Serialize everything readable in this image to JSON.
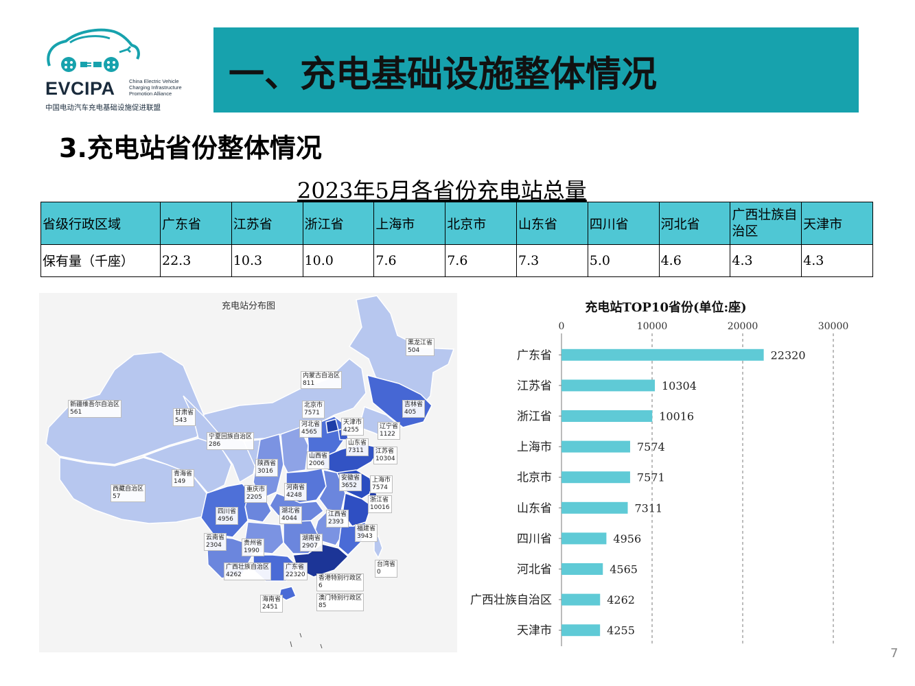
{
  "logo": {
    "name": "EVCIPA",
    "english_lines": [
      "China Electric Vehicle",
      "Charging Infrastructure",
      "Promotion Alliance"
    ],
    "chinese": "中国电动汽车充电基础设施促进联盟"
  },
  "header": {
    "title": "一、充电基础设施整体情况"
  },
  "section": {
    "title": "3.充电站省份整体情况"
  },
  "table": {
    "title": "2023年5月各省份充电站总量",
    "row_headers": [
      "省级行政区域",
      "保有量（千座）"
    ],
    "columns": [
      {
        "province": "广东省",
        "value": "22.3"
      },
      {
        "province": "江苏省",
        "value": "10.3"
      },
      {
        "province": "浙江省",
        "value": "10.0"
      },
      {
        "province": "上海市",
        "value": "7.6"
      },
      {
        "province": "北京市",
        "value": "7.6"
      },
      {
        "province": "山东省",
        "value": "7.3"
      },
      {
        "province": "四川省",
        "value": "5.0"
      },
      {
        "province": "河北省",
        "value": "4.6"
      },
      {
        "province": "广西壮族自治区",
        "value": "4.3"
      },
      {
        "province": "天津市",
        "value": "4.3"
      }
    ]
  },
  "map": {
    "title": "充电站分布图",
    "provinces": [
      {
        "name": "黑龙江省",
        "value": "504"
      },
      {
        "name": "内蒙古自治区",
        "value": "811"
      },
      {
        "name": "新疆维吾尔自治区",
        "value": "561"
      },
      {
        "name": "甘肃省",
        "value": "543"
      },
      {
        "name": "北京市",
        "value": "7571"
      },
      {
        "name": "吉林省",
        "value": "405"
      },
      {
        "name": "天津市",
        "value": "4255"
      },
      {
        "name": "河北省",
        "value": "4565"
      },
      {
        "name": "辽宁省",
        "value": "1122"
      },
      {
        "name": "宁夏回族自治区",
        "value": "286"
      },
      {
        "name": "山东省",
        "value": "7311"
      },
      {
        "name": "江苏省",
        "value": "10304"
      },
      {
        "name": "山西省",
        "value": "2006"
      },
      {
        "name": "陕西省",
        "value": "3016"
      },
      {
        "name": "青海省",
        "value": "149"
      },
      {
        "name": "安徽省",
        "value": "3652"
      },
      {
        "name": "上海市",
        "value": "7574"
      },
      {
        "name": "西藏自治区",
        "value": "57"
      },
      {
        "name": "重庆市",
        "value": "2205"
      },
      {
        "name": "河南省",
        "value": "4248"
      },
      {
        "name": "浙江省",
        "value": "10016"
      },
      {
        "name": "四川省",
        "value": "4956"
      },
      {
        "name": "湖北省",
        "value": "4044"
      },
      {
        "name": "江西省",
        "value": "2393"
      },
      {
        "name": "福建省",
        "value": "3943"
      },
      {
        "name": "云南省",
        "value": "2304"
      },
      {
        "name": "贵州省",
        "value": "1990"
      },
      {
        "name": "湖南省",
        "value": "2907"
      },
      {
        "name": "台湾省",
        "value": "0"
      },
      {
        "name": "广西壮族自治区",
        "value": "4262"
      },
      {
        "name": "广东省",
        "value": "22320"
      },
      {
        "name": "香港特别行政区",
        "value": "6"
      },
      {
        "name": "海南省",
        "value": "2451"
      },
      {
        "name": "澳门特别行政区",
        "value": "85"
      }
    ]
  },
  "chart_data": {
    "type": "bar",
    "orientation": "horizontal",
    "title": "充电站TOP10省份(单位:座)",
    "categories": [
      "广东省",
      "江苏省",
      "浙江省",
      "上海市",
      "北京市",
      "山东省",
      "四川省",
      "河北省",
      "广西壮族自治区",
      "天津市"
    ],
    "values": [
      22320,
      10304,
      10016,
      7574,
      7571,
      7311,
      4956,
      4565,
      4262,
      4255
    ],
    "xlim": [
      0,
      30000
    ],
    "xticks": [
      "0",
      "10000",
      "20000",
      "30000"
    ],
    "grid": true,
    "color": "#5fcad6"
  },
  "page": {
    "number": "7"
  }
}
